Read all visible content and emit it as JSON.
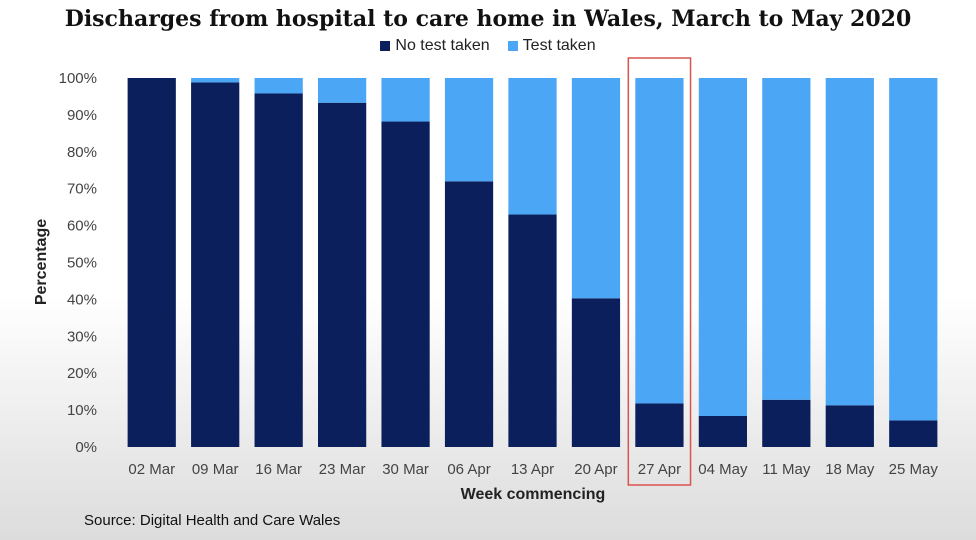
{
  "chart_data": {
    "type": "bar",
    "stacked": true,
    "title": "Discharges from hospital to care home in Wales, March to May 2020",
    "xlabel": "Week commencing",
    "ylabel": "Percentage",
    "ylim": [
      0,
      100
    ],
    "yticks": [
      "0%",
      "10%",
      "20%",
      "30%",
      "40%",
      "50%",
      "60%",
      "70%",
      "80%",
      "90%",
      "100%"
    ],
    "categories": [
      "02 Mar",
      "09 Mar",
      "16 Mar",
      "23 Mar",
      "30 Mar",
      "06 Apr",
      "13 Apr",
      "20 Apr",
      "27 Apr",
      "04 May",
      "11 May",
      "18 May",
      "25 May"
    ],
    "series": [
      {
        "name": "No test taken",
        "color": "#0b1f5c",
        "values": [
          100,
          98.8,
          95.8,
          93.3,
          88.2,
          72,
          63,
          40.3,
          11.8,
          8.4,
          12.8,
          11.3,
          7.2
        ]
      },
      {
        "name": "Test taken",
        "color": "#4ba6f5",
        "values": [
          0,
          1.2,
          4.2,
          6.7,
          11.8,
          28,
          37,
          59.7,
          88.2,
          91.6,
          87.2,
          88.7,
          92.8
        ]
      }
    ],
    "highlight_category": "27 Apr",
    "highlight_color": "#d9534f",
    "legend_position": "top",
    "grid": false
  },
  "source_text": "Source: Digital Health and Care Wales"
}
